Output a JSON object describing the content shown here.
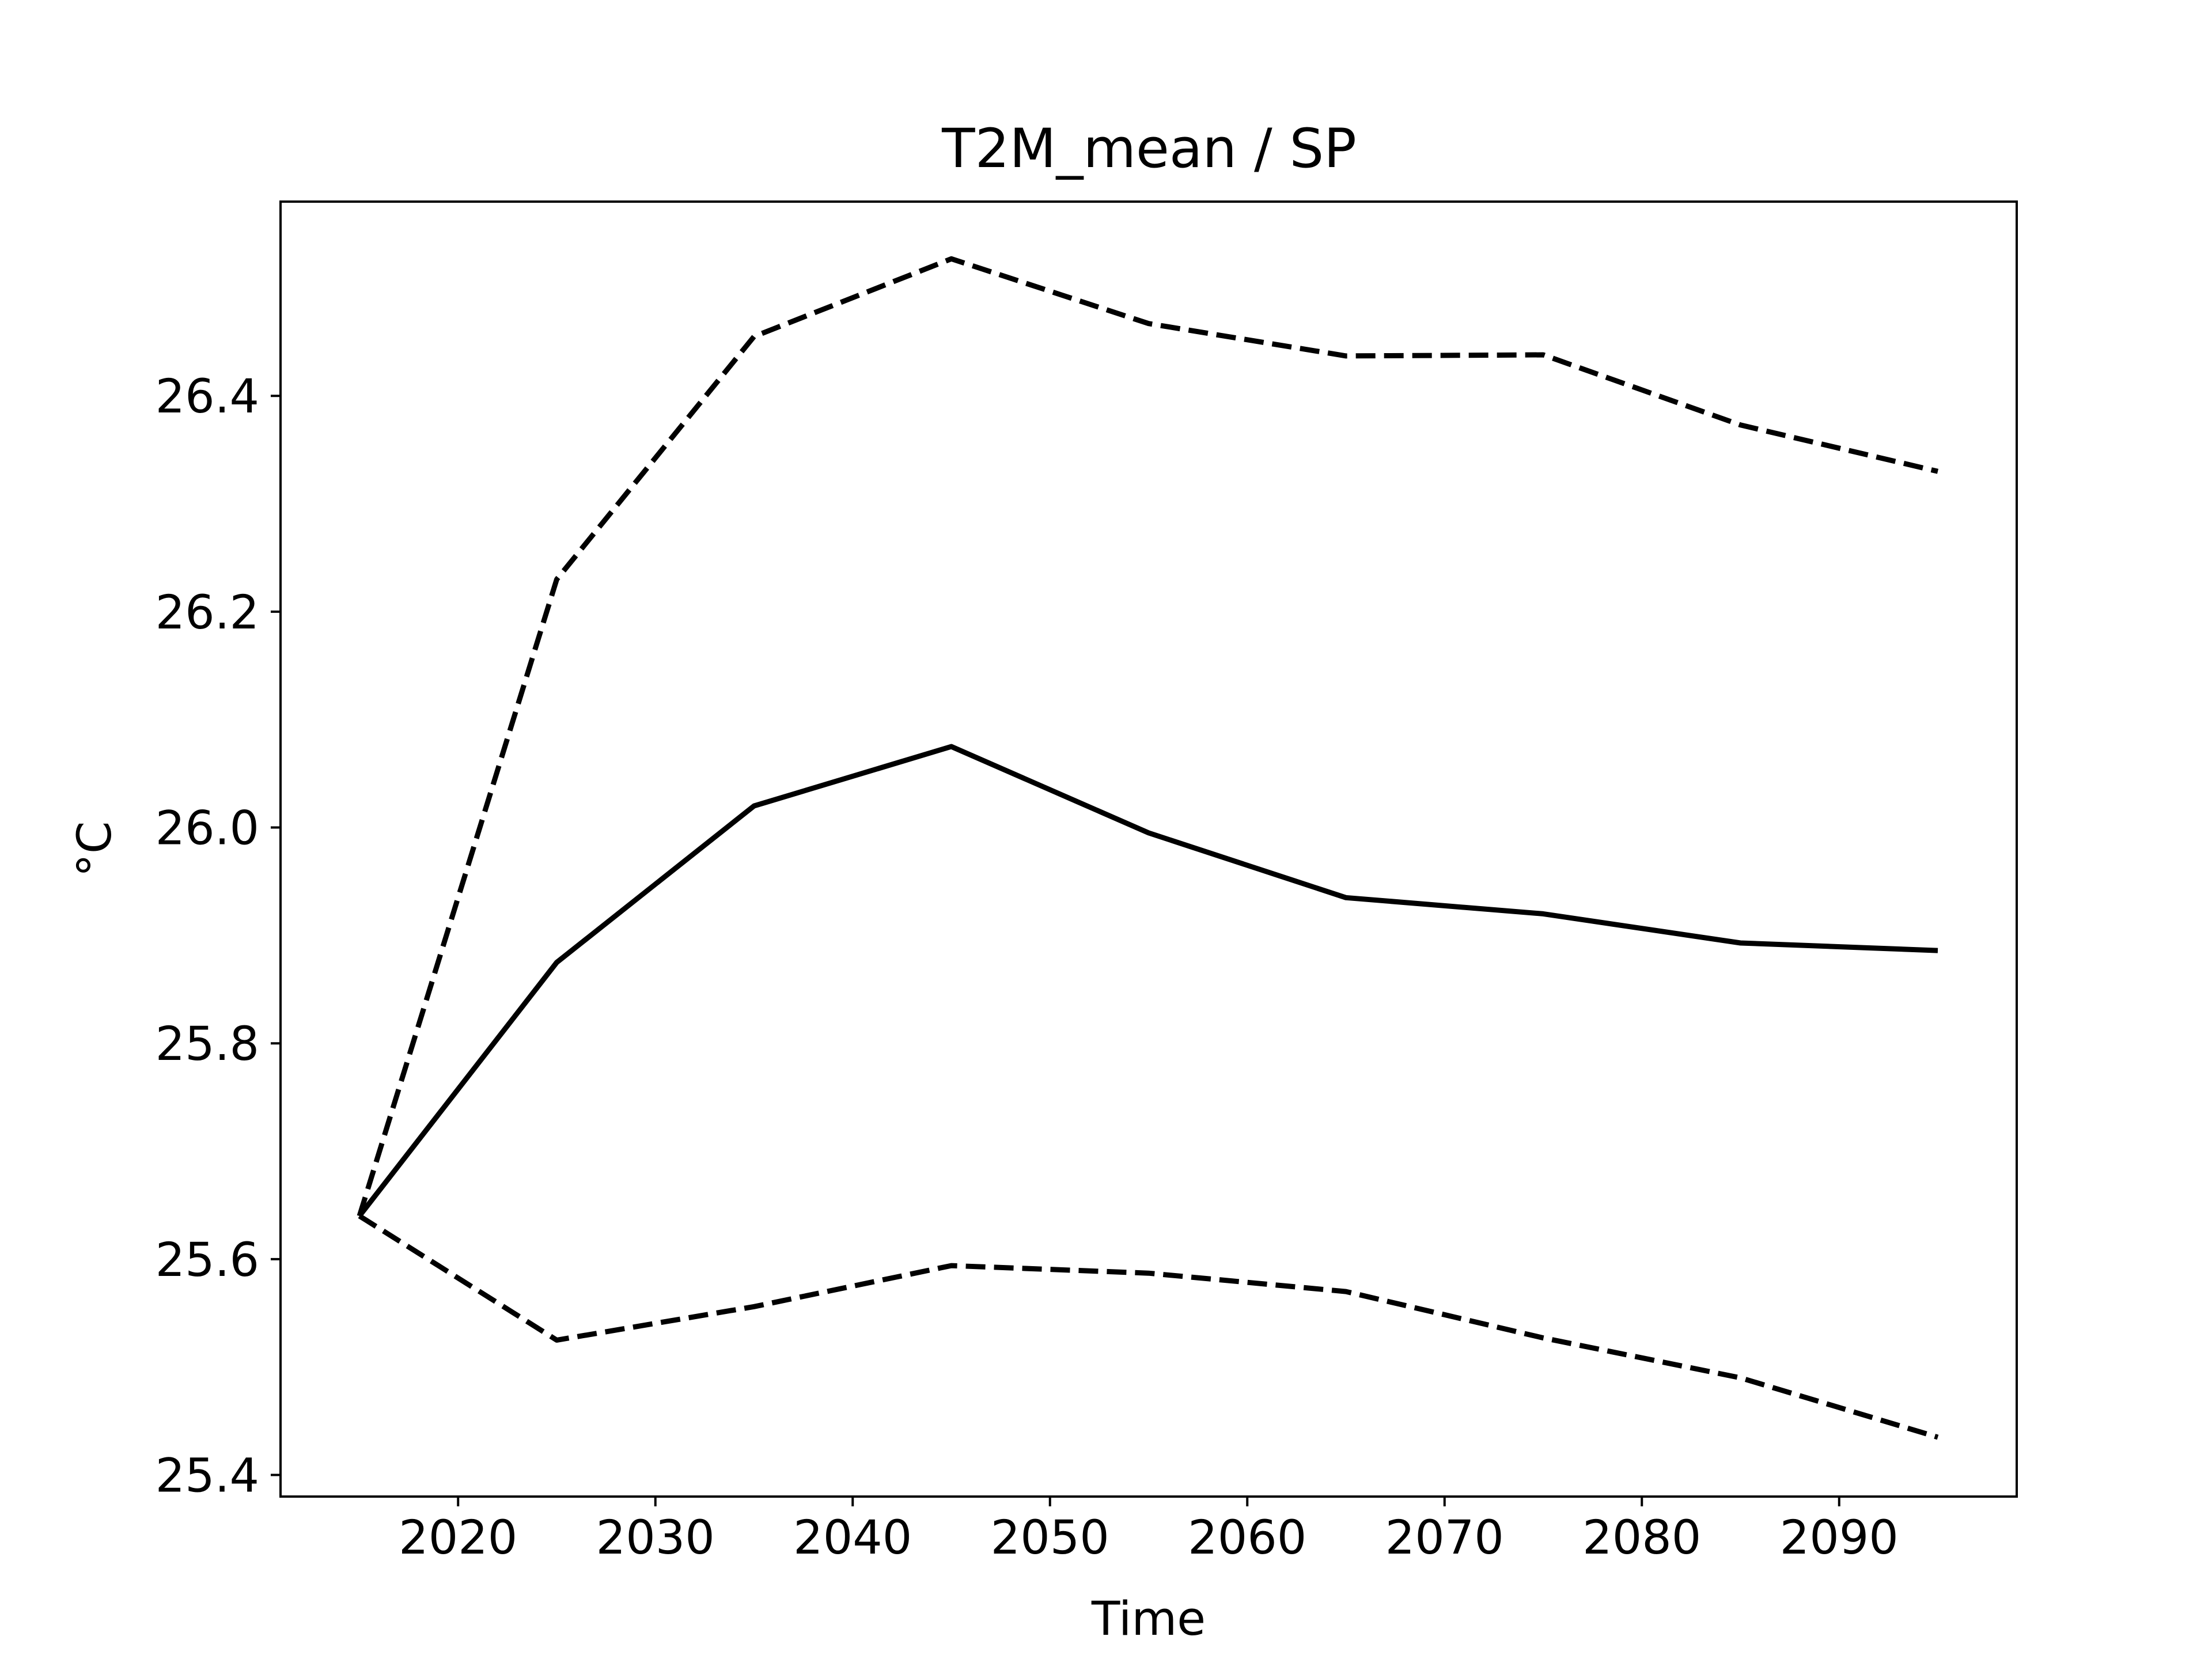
{
  "chart_data": {
    "type": "line",
    "title": "T2M_mean / SP",
    "xlabel": "Time",
    "ylabel": "°C",
    "xlim": [
      2011,
      2099
    ],
    "ylim": [
      25.38,
      26.58
    ],
    "xticks": [
      2020,
      2030,
      2040,
      2050,
      2060,
      2070,
      2080,
      2090
    ],
    "yticks": [
      25.4,
      25.6,
      25.8,
      26.0,
      26.2,
      26.4
    ],
    "grid": false,
    "x": [
      2015,
      2025,
      2035,
      2045,
      2055,
      2065,
      2075,
      2085,
      2095
    ],
    "series": [
      {
        "style": "solid",
        "color": "#000000",
        "values": [
          25.64,
          25.875,
          26.02,
          26.075,
          25.995,
          25.935,
          25.92,
          25.893,
          25.886
        ]
      },
      {
        "style": "dashed",
        "color": "#000000",
        "values": [
          25.64,
          26.23,
          26.455,
          26.527,
          26.467,
          26.437,
          26.438,
          26.373,
          26.33
        ]
      },
      {
        "style": "dashed",
        "color": "#000000",
        "values": [
          25.64,
          25.525,
          25.556,
          25.594,
          25.587,
          25.57,
          25.527,
          25.49,
          25.435
        ]
      }
    ]
  }
}
